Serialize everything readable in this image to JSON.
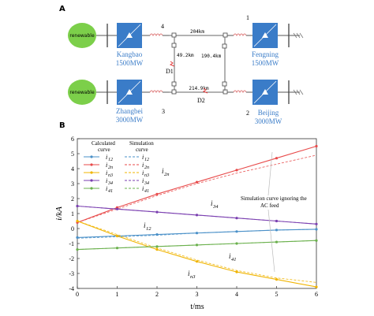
{
  "panel_a": {
    "label": "A",
    "renewable_label": "renewable",
    "stations": {
      "kangbao": {
        "name": "Kangbao",
        "capacity": "1500MW"
      },
      "zhangbei": {
        "name": "Zhangbei",
        "capacity": "3000MW"
      },
      "fengning": {
        "name": "Fengning",
        "capacity": "1500MW"
      },
      "beijing": {
        "name": "Beijing",
        "capacity": "3000MW"
      }
    },
    "nodes": {
      "n1": "1",
      "n2": "2",
      "n3": "3",
      "n4": "4"
    },
    "lines": {
      "l41": "204km",
      "l43": "49.2km",
      "l12": "190.4km",
      "l32": "214.9km"
    },
    "faults": {
      "d1": "D1",
      "d2": "D2"
    },
    "colors": {
      "converter": "#3a7cc8",
      "renewable": "#7ccf4a",
      "fault": "#e23c3c",
      "coil": "#e08080"
    }
  },
  "panel_b": {
    "label": "B",
    "legend": {
      "calc_header_1": "Calculated",
      "calc_header_2": "curve",
      "sim_header_1": "Simulation",
      "sim_header_2": "curve",
      "rows": [
        {
          "name": "i",
          "sub": "12",
          "color": "#4a90c8"
        },
        {
          "name": "i",
          "sub": "2n",
          "color": "#e84a4a"
        },
        {
          "name": "i",
          "sub": "n3",
          "color": "#f0b400"
        },
        {
          "name": "i",
          "sub": "34",
          "color": "#7a3fb0"
        },
        {
          "name": "i",
          "sub": "41",
          "color": "#6ab04c"
        }
      ]
    },
    "annotation": {
      "line1": "Simulation curve ignoring the",
      "line2": "AC feed"
    },
    "curve_labels": [
      {
        "name": "i",
        "sub": "2n"
      },
      {
        "name": "i",
        "sub": "34"
      },
      {
        "name": "i",
        "sub": "12"
      },
      {
        "name": "i",
        "sub": "41"
      },
      {
        "name": "i",
        "sub": "n3"
      }
    ]
  },
  "chart_data": {
    "type": "line",
    "xlabel": "t/ms",
    "ylabel": "i/kA",
    "xlim": [
      0,
      6
    ],
    "ylim": [
      -4,
      6
    ],
    "xticks": [
      "0",
      "1",
      "2",
      "3",
      "4",
      "5",
      "6"
    ],
    "yticks": [
      "-4",
      "-3",
      "-2",
      "-1",
      "0",
      "1",
      "2",
      "3",
      "4",
      "5",
      "6"
    ],
    "grid": false,
    "legend_position": "top-left",
    "x": [
      0,
      1,
      2,
      3,
      4,
      5,
      6
    ],
    "series": [
      {
        "name": "i12",
        "color": "#4a90c8",
        "values": [
          -0.6,
          -0.5,
          -0.4,
          -0.3,
          -0.2,
          -0.1,
          -0.05
        ],
        "sim_values": [
          -0.65,
          -0.55,
          -0.45,
          -0.3,
          -0.2,
          -0.1,
          -0.05
        ]
      },
      {
        "name": "i2n",
        "color": "#e84a4a",
        "values": [
          0.4,
          1.4,
          2.3,
          3.1,
          3.9,
          4.7,
          5.5
        ],
        "sim_values": [
          0.4,
          1.3,
          2.2,
          3.0,
          3.7,
          4.3,
          4.9
        ]
      },
      {
        "name": "in3",
        "color": "#f0b400",
        "values": [
          0.5,
          -0.5,
          -1.4,
          -2.2,
          -2.9,
          -3.4,
          -3.9
        ],
        "sim_values": [
          0.5,
          -0.4,
          -1.3,
          -2.1,
          -2.8,
          -3.3,
          -3.6
        ]
      },
      {
        "name": "i34",
        "color": "#7a3fb0",
        "values": [
          1.5,
          1.3,
          1.1,
          0.9,
          0.7,
          0.5,
          0.3
        ],
        "sim_values": [
          1.5,
          1.3,
          1.1,
          0.9,
          0.7,
          0.5,
          0.3
        ]
      },
      {
        "name": "i41",
        "color": "#6ab04c",
        "values": [
          -1.4,
          -1.3,
          -1.2,
          -1.1,
          -1.0,
          -0.9,
          -0.8
        ],
        "sim_values": [
          -1.4,
          -1.3,
          -1.2,
          -1.1,
          -1.0,
          -0.9,
          -0.8
        ]
      }
    ]
  }
}
